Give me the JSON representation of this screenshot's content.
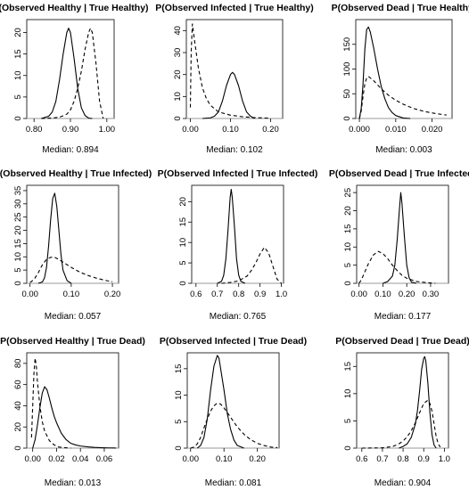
{
  "chart_data": [
    {
      "type": "line",
      "title": "P(Observed Healthy | True Healthy)",
      "caption": "Median: 0.894",
      "xticks": [
        "0.80",
        "0.90",
        "1.00"
      ],
      "yticks": [
        "0",
        "5",
        "10",
        "15",
        "20"
      ],
      "xlim": [
        0.78,
        1.02
      ],
      "ylim": [
        0,
        23
      ],
      "series": [
        {
          "style": "solid",
          "x": [
            0.82,
            0.84,
            0.85,
            0.86,
            0.87,
            0.88,
            0.89,
            0.895,
            0.9,
            0.91,
            0.92,
            0.93,
            0.94,
            0.95,
            0.96
          ],
          "y": [
            0,
            0.5,
            1.5,
            4,
            9,
            15,
            20,
            21,
            20,
            14,
            7,
            2.5,
            0.7,
            0.1,
            0
          ]
        },
        {
          "style": "dashed",
          "x": [
            0.82,
            0.85,
            0.87,
            0.89,
            0.9,
            0.91,
            0.92,
            0.93,
            0.94,
            0.95,
            0.955,
            0.96,
            0.97,
            0.98,
            0.99
          ],
          "y": [
            0,
            0.1,
            0.3,
            1,
            2,
            4,
            7,
            11,
            16,
            20,
            21,
            20,
            13,
            4,
            0
          ]
        }
      ]
    },
    {
      "type": "line",
      "title": "P(Observed Infected | True Healthy)",
      "caption": "Median: 0.102",
      "xticks": [
        "0.00",
        "0.10",
        "0.20"
      ],
      "yticks": [
        "0",
        "10",
        "20",
        "30",
        "40"
      ],
      "xlim": [
        -0.01,
        0.23
      ],
      "ylim": [
        0,
        45
      ],
      "series": [
        {
          "style": "solid",
          "x": [
            0.03,
            0.05,
            0.06,
            0.07,
            0.08,
            0.09,
            0.1,
            0.105,
            0.11,
            0.12,
            0.13,
            0.14,
            0.15,
            0.16
          ],
          "y": [
            0,
            0.3,
            1,
            3,
            8,
            15,
            20,
            21,
            20,
            15,
            8,
            3,
            1,
            0
          ]
        },
        {
          "style": "dashed",
          "x": [
            0,
            0.002,
            0.005,
            0.01,
            0.02,
            0.03,
            0.04,
            0.05,
            0.07,
            0.1,
            0.13,
            0.16,
            0.2
          ],
          "y": [
            5,
            30,
            43,
            36,
            23,
            14,
            9,
            6,
            3,
            1.5,
            0.8,
            0.4,
            0.1
          ]
        }
      ]
    },
    {
      "type": "line",
      "title": "P(Observed Dead | True Healthy)",
      "caption": "Median: 0.003",
      "xticks": [
        "0.000",
        "0.010",
        "0.020"
      ],
      "yticks": [
        "0",
        "50",
        "100",
        "150"
      ],
      "xlim": [
        -0.001,
        0.0255
      ],
      "ylim": [
        0,
        200
      ],
      "series": [
        {
          "style": "solid",
          "x": [
            0,
            0.0005,
            0.001,
            0.0015,
            0.002,
            0.0025,
            0.003,
            0.004,
            0.005,
            0.006,
            0.007,
            0.008,
            0.009,
            0.01,
            0.012,
            0.014
          ],
          "y": [
            0,
            20,
            70,
            140,
            180,
            185,
            175,
            140,
            100,
            65,
            40,
            22,
            12,
            6,
            1,
            0
          ]
        },
        {
          "style": "dashed",
          "x": [
            0,
            0.0005,
            0.001,
            0.0015,
            0.002,
            0.0025,
            0.003,
            0.004,
            0.005,
            0.006,
            0.008,
            0.01,
            0.012,
            0.015,
            0.018,
            0.021,
            0.024
          ],
          "y": [
            0,
            15,
            45,
            70,
            82,
            85,
            82,
            76,
            68,
            60,
            47,
            37,
            29,
            20,
            14,
            10,
            7
          ]
        }
      ]
    },
    {
      "type": "line",
      "title": "P(Observed Healthy | True Infected)",
      "caption": "Median: 0.057",
      "xticks": [
        "0.00",
        "0.10",
        "0.20"
      ],
      "yticks": [
        "0",
        "5",
        "10",
        "15",
        "20",
        "25",
        "30",
        "35"
      ],
      "xlim": [
        -0.008,
        0.215
      ],
      "ylim": [
        0,
        37
      ],
      "series": [
        {
          "style": "solid",
          "x": [
            0.02,
            0.03,
            0.035,
            0.04,
            0.045,
            0.05,
            0.055,
            0.06,
            0.065,
            0.07,
            0.075,
            0.08,
            0.09,
            0.1
          ],
          "y": [
            0,
            0.5,
            2,
            6,
            14,
            24,
            32,
            34,
            29,
            20,
            11,
            5,
            1,
            0
          ]
        },
        {
          "style": "dashed",
          "x": [
            0,
            0.01,
            0.02,
            0.03,
            0.04,
            0.05,
            0.06,
            0.07,
            0.08,
            0.1,
            0.12,
            0.14,
            0.16,
            0.18,
            0.2
          ],
          "y": [
            0.3,
            1.5,
            4,
            7,
            9,
            9.8,
            9.8,
            9,
            8,
            6,
            4.3,
            3,
            2,
            1.2,
            0.6
          ]
        }
      ]
    },
    {
      "type": "line",
      "title": "P(Observed Infected | True Infected)",
      "caption": "Median: 0.765",
      "xticks": [
        "0.6",
        "0.7",
        "0.8",
        "0.9",
        "1.0"
      ],
      "yticks": [
        "0",
        "5",
        "10",
        "15",
        "20"
      ],
      "xlim": [
        0.58,
        1.01
      ],
      "ylim": [
        0,
        24
      ],
      "series": [
        {
          "style": "solid",
          "x": [
            0.7,
            0.72,
            0.73,
            0.74,
            0.75,
            0.76,
            0.765,
            0.77,
            0.78,
            0.79,
            0.8,
            0.81,
            0.83
          ],
          "y": [
            0,
            0.5,
            2,
            6,
            13,
            21,
            23,
            21,
            14,
            6,
            2,
            0.5,
            0
          ]
        },
        {
          "style": "dashed",
          "x": [
            0.72,
            0.76,
            0.8,
            0.84,
            0.86,
            0.88,
            0.9,
            0.92,
            0.94,
            0.96,
            0.98,
            1.0
          ],
          "y": [
            0,
            0.2,
            0.6,
            1.8,
            3.2,
            5,
            7.2,
            8.8,
            7.5,
            4.2,
            1,
            0
          ]
        }
      ]
    },
    {
      "type": "line",
      "title": "P(Observed Dead | True Infected)",
      "caption": "Median: 0.177",
      "xticks": [
        "0.00",
        "0.10",
        "0.20",
        "0.30"
      ],
      "yticks": [
        "0",
        "5",
        "10",
        "15",
        "20",
        "25"
      ],
      "xlim": [
        -0.01,
        0.375
      ],
      "ylim": [
        0,
        27
      ],
      "series": [
        {
          "style": "solid",
          "x": [
            0.1,
            0.12,
            0.14,
            0.15,
            0.16,
            0.17,
            0.175,
            0.18,
            0.19,
            0.2,
            0.21,
            0.22,
            0.24
          ],
          "y": [
            0,
            0.5,
            2,
            5,
            12,
            21,
            25,
            22,
            13,
            5,
            1.5,
            0.3,
            0
          ]
        },
        {
          "style": "dashed",
          "x": [
            0,
            0.01,
            0.02,
            0.04,
            0.06,
            0.08,
            0.1,
            0.12,
            0.14,
            0.16,
            0.18,
            0.2,
            0.24,
            0.28,
            0.32
          ],
          "y": [
            0,
            1,
            2.5,
            5.5,
            7.8,
            8.8,
            8.2,
            6.8,
            5,
            3.5,
            2.2,
            1.4,
            0.5,
            0.2,
            0
          ]
        }
      ]
    },
    {
      "type": "line",
      "title": "P(Observed Healthy | True Dead)",
      "caption": "Median: 0.013",
      "xticks": [
        "0.00",
        "0.02",
        "0.04",
        "0.06"
      ],
      "yticks": [
        "0",
        "20",
        "40",
        "60",
        "80"
      ],
      "xlim": [
        -0.005,
        0.072
      ],
      "ylim": [
        0,
        90
      ],
      "series": [
        {
          "style": "solid",
          "x": [
            0,
            0.002,
            0.004,
            0.006,
            0.008,
            0.01,
            0.012,
            0.014,
            0.016,
            0.018,
            0.02,
            0.024,
            0.028,
            0.032,
            0.036,
            0.04,
            0.046,
            0.052,
            0.058,
            0.064,
            0.07
          ],
          "y": [
            0,
            8,
            22,
            38,
            52,
            58,
            55,
            47,
            38,
            30,
            24,
            14,
            8,
            4.5,
            3,
            2,
            1.2,
            0.7,
            0.4,
            0.2,
            0.1
          ]
        },
        {
          "style": "dashed",
          "x": [
            -0.001,
            0,
            0.001,
            0.002,
            0.003,
            0.004,
            0.006,
            0.008,
            0.01,
            0.014,
            0.018,
            0.022,
            0.026,
            0.032
          ],
          "y": [
            10,
            40,
            70,
            85,
            78,
            62,
            40,
            25,
            16,
            7,
            3,
            1,
            0.5,
            0
          ]
        }
      ]
    },
    {
      "type": "line",
      "title": "P(Observed Infected | True Dead)",
      "caption": "Median: 0.081",
      "xticks": [
        "0.00",
        "0.10",
        "0.20"
      ],
      "yticks": [
        "0",
        "5",
        "10",
        "15"
      ],
      "xlim": [
        -0.01,
        0.265
      ],
      "ylim": [
        0,
        18
      ],
      "series": [
        {
          "style": "solid",
          "x": [
            0.02,
            0.03,
            0.04,
            0.05,
            0.06,
            0.07,
            0.08,
            0.085,
            0.09,
            0.1,
            0.11,
            0.12,
            0.13,
            0.14,
            0.16
          ],
          "y": [
            0,
            0.5,
            2,
            5.5,
            11,
            15.5,
            17.5,
            17,
            15,
            11,
            6.5,
            3.5,
            1.5,
            0.5,
            0
          ]
        },
        {
          "style": "dashed",
          "x": [
            0,
            0.01,
            0.02,
            0.03,
            0.04,
            0.05,
            0.06,
            0.07,
            0.08,
            0.09,
            0.1,
            0.12,
            0.14,
            0.16,
            0.18,
            0.2,
            0.22,
            0.24,
            0.26
          ],
          "y": [
            0,
            0.2,
            0.8,
            2,
            3.8,
            5.5,
            7,
            8,
            8.5,
            8.3,
            7.6,
            5.8,
            4,
            2.6,
            1.6,
            0.9,
            0.5,
            0.2,
            0.1
          ]
        }
      ]
    },
    {
      "type": "line",
      "title": "P(Observed Dead | True Dead)",
      "caption": "Median: 0.904",
      "xticks": [
        "0.6",
        "0.7",
        "0.8",
        "0.9",
        "1.0"
      ],
      "yticks": [
        "0",
        "5",
        "10",
        "15"
      ],
      "xlim": [
        0.575,
        1.02
      ],
      "ylim": [
        0,
        17.5
      ],
      "series": [
        {
          "style": "solid",
          "x": [
            0.78,
            0.8,
            0.82,
            0.84,
            0.86,
            0.87,
            0.88,
            0.89,
            0.9,
            0.905,
            0.91,
            0.92,
            0.93,
            0.94,
            0.95,
            0.96
          ],
          "y": [
            0,
            0.3,
            0.8,
            2,
            4.5,
            7,
            10.5,
            14.5,
            16.5,
            16.8,
            16,
            12,
            6.5,
            2.5,
            0.6,
            0
          ]
        },
        {
          "style": "dashed",
          "x": [
            0.6,
            0.7,
            0.75,
            0.78,
            0.8,
            0.82,
            0.84,
            0.86,
            0.88,
            0.9,
            0.92,
            0.93,
            0.94,
            0.95,
            0.96,
            0.97,
            0.98
          ],
          "y": [
            0,
            0.05,
            0.3,
            0.8,
            1.3,
            2.1,
            3.2,
            4.7,
            6.5,
            8.2,
            8.8,
            8.2,
            6.8,
            4.5,
            2.2,
            0.8,
            0.2
          ]
        }
      ]
    }
  ]
}
